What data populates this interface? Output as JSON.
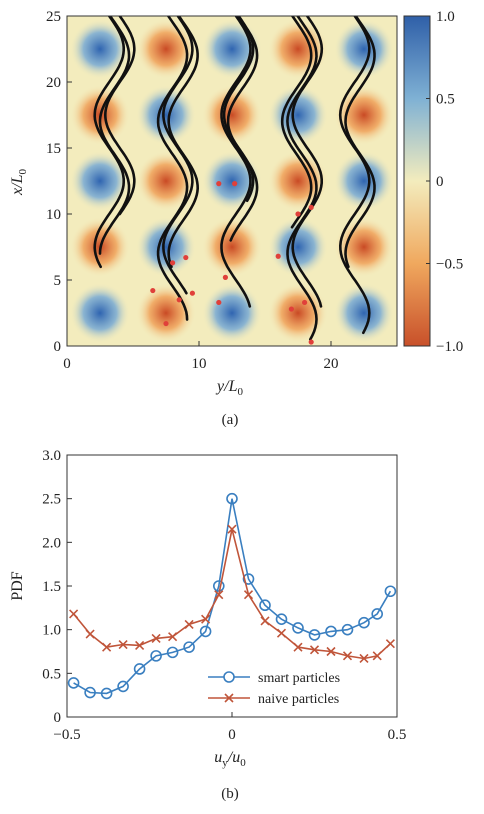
{
  "panel_a": {
    "caption": "(a)",
    "xlabel_main": "y/L",
    "xlabel_sub": "0",
    "ylabel_main": "x/L",
    "ylabel_sub": "0",
    "x_ticks": [
      "0",
      "10",
      "20"
    ],
    "y_ticks": [
      "0",
      "5",
      "10",
      "15",
      "20",
      "25"
    ],
    "colorbar_ticks": [
      "1.0",
      "0.5",
      "0",
      "−0.5",
      "−1.0"
    ],
    "colormap": {
      "low": "#c8502a",
      "mid": "#f3ecbd",
      "high": "#3a6fb8"
    },
    "trajectory_color": "#111111",
    "endpoint_color": "#e0403a"
  },
  "panel_b": {
    "caption": "(b)",
    "ylabel": "PDF",
    "xlabel_main": "u",
    "xlabel_sub1": "y",
    "xlabel_mid": "/u",
    "xlabel_sub2": "0",
    "x_ticks": [
      "−0.5",
      "0",
      "0.5"
    ],
    "y_ticks": [
      "0",
      "0.5",
      "1.0",
      "1.5",
      "2.0",
      "2.5",
      "3.0"
    ],
    "legend": [
      "smart particles",
      "naive particles"
    ]
  },
  "chart_data": [
    {
      "type": "heatmap",
      "description_field": "vorticity field with particle trajectories",
      "xlim": [
        0,
        25
      ],
      "ylim": [
        0,
        25
      ],
      "colorbar_range": [
        -1.0,
        1.0
      ],
      "x_ticks": [
        0,
        10,
        20
      ],
      "y_ticks": [
        0,
        5,
        10,
        15,
        20,
        25
      ],
      "colors": {
        "negative": "#c8502a",
        "zero": "#f3ecbd",
        "positive": "#3a6fb8"
      }
    },
    {
      "type": "line",
      "xlim": [
        -0.5,
        0.5
      ],
      "ylim": [
        0,
        3.0
      ],
      "grid": false,
      "legend_position": "bottom-right",
      "series": [
        {
          "name": "smart particles",
          "color": "#3a7fc0",
          "marker": "circle",
          "x": [
            -0.48,
            -0.43,
            -0.38,
            -0.33,
            -0.28,
            -0.23,
            -0.18,
            -0.13,
            -0.08,
            -0.04,
            0.0,
            0.05,
            0.1,
            0.15,
            0.2,
            0.25,
            0.3,
            0.35,
            0.4,
            0.44,
            0.48
          ],
          "y": [
            0.39,
            0.28,
            0.27,
            0.35,
            0.55,
            0.7,
            0.74,
            0.8,
            0.98,
            1.5,
            2.5,
            1.58,
            1.28,
            1.12,
            1.02,
            0.94,
            0.98,
            1.0,
            1.08,
            1.18,
            1.44
          ]
        },
        {
          "name": "naive particles",
          "color": "#c0553a",
          "marker": "x",
          "x": [
            -0.48,
            -0.43,
            -0.38,
            -0.33,
            -0.28,
            -0.23,
            -0.18,
            -0.13,
            -0.08,
            -0.04,
            0.0,
            0.05,
            0.1,
            0.15,
            0.2,
            0.25,
            0.3,
            0.35,
            0.4,
            0.44,
            0.48
          ],
          "y": [
            1.18,
            0.95,
            0.8,
            0.83,
            0.82,
            0.9,
            0.92,
            1.06,
            1.12,
            1.4,
            2.15,
            1.4,
            1.1,
            0.96,
            0.8,
            0.77,
            0.75,
            0.7,
            0.67,
            0.7,
            0.84
          ]
        }
      ]
    }
  ]
}
